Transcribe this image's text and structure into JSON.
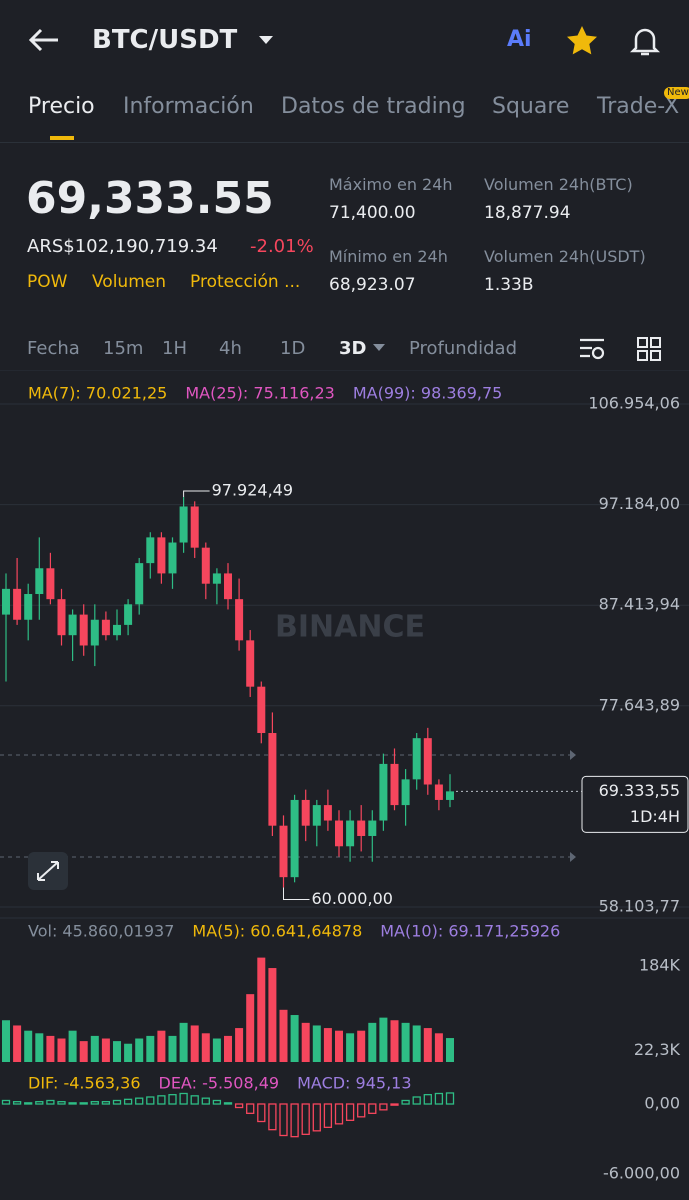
{
  "header": {
    "pair": "BTC/USDT",
    "ai": "Ai"
  },
  "tabs": [
    "Precio",
    "Información",
    "Datos de trading",
    "Square",
    "Trade-X"
  ],
  "tab_badge": "New",
  "ticker": {
    "price": "69,333.55",
    "fiat": "ARS$102,190,719.34",
    "change": "-2.01%",
    "tags": [
      "POW",
      "Volumen",
      "Protección ..."
    ],
    "stats": [
      {
        "label": "Máximo en 24h",
        "value": "71,400.00"
      },
      {
        "label": "Volumen 24h(BTC)",
        "value": "18,877.94"
      },
      {
        "label": "Mínimo en 24h",
        "value": "68,923.07"
      },
      {
        "label": "Volumen 24h(USDT)",
        "value": "1.33B"
      }
    ]
  },
  "timeframes": [
    "Fecha",
    "15m",
    "1H",
    "4h",
    "1D",
    "3D",
    "Profundidad"
  ],
  "chart_data": [
    {
      "type": "candlestick",
      "watermark": "BINANCE",
      "legend": [
        {
          "name": "MA(7): 70.021,25",
          "color": "#f0b90b"
        },
        {
          "name": "MA(25): 75.116,23",
          "color": "#e056c1"
        },
        {
          "name": "MA(99): 98.369,75",
          "color": "#9d7ee0"
        }
      ],
      "open": [
        86500,
        89000,
        86000,
        88500,
        91000,
        88000,
        84500,
        86500,
        83500,
        86000,
        84500,
        85500,
        87500,
        91500,
        94000,
        90500,
        93500,
        97000,
        93000,
        89500,
        90500,
        88000,
        84000,
        79500,
        75000,
        66000,
        61000,
        68500,
        66000,
        68000,
        66500,
        64000,
        66500,
        65000,
        66500,
        72000,
        68000,
        70500,
        74500,
        70000,
        68500
      ],
      "high": [
        90500,
        92000,
        89500,
        94000,
        92500,
        89000,
        87000,
        87500,
        87500,
        86800,
        87000,
        88000,
        92000,
        94500,
        94500,
        94000,
        97924.49,
        97500,
        93500,
        91000,
        91500,
        90000,
        85000,
        80000,
        77000,
        67000,
        69000,
        69500,
        68500,
        69500,
        67500,
        67500,
        68000,
        67500,
        73000,
        73500,
        71500,
        75000,
        75500,
        70500,
        71000
      ],
      "low": [
        80000,
        85500,
        84000,
        86000,
        87500,
        83500,
        82000,
        82500,
        81500,
        84000,
        84000,
        84500,
        86500,
        90000,
        89500,
        89000,
        92500,
        92000,
        88000,
        87500,
        87000,
        83000,
        78500,
        74000,
        65000,
        60000,
        60500,
        64500,
        64000,
        65500,
        63000,
        62500,
        63500,
        62500,
        65500,
        67500,
        66000,
        69500,
        69000,
        67500,
        67800
      ],
      "close": [
        89000,
        86000,
        88500,
        91000,
        88000,
        84500,
        86500,
        83500,
        86000,
        84500,
        85500,
        87500,
        91500,
        94000,
        90500,
        93500,
        97000,
        93000,
        89500,
        90500,
        88000,
        84000,
        79500,
        75000,
        66000,
        61000,
        68500,
        66000,
        68000,
        66500,
        64000,
        66500,
        65000,
        66500,
        72000,
        68000,
        70500,
        74500,
        70000,
        68500,
        69333.55
      ],
      "up_color": "#2ebd85",
      "down_color": "#f6465d",
      "ylim": [
        57035,
        109478
      ],
      "yticks": [
        {
          "value": 106954.06,
          "label": "106.954,06"
        },
        {
          "value": 97184,
          "label": "97.184,00"
        },
        {
          "value": 87413.94,
          "label": "87.413,94"
        },
        {
          "value": 77643.89,
          "label": "77.643,89"
        },
        {
          "value": 58103.77,
          "label": "58.103,77"
        }
      ],
      "annotations": [
        {
          "value": 97924.49,
          "label": "97.924,49"
        },
        {
          "value": 60000,
          "label": "60.000,00"
        }
      ],
      "last_price": {
        "value": 69333.55,
        "label": "69.333,55"
      },
      "countdown": "1D:4H"
    },
    {
      "type": "bar",
      "legend": [
        {
          "name": "Vol: 45.860,01937",
          "color": "#848e9c"
        },
        {
          "name": "MA(5): 60.641,64878",
          "color": "#f0b90b"
        },
        {
          "name": "MA(10): 69.171,25926",
          "color": "#9d7ee0"
        }
      ],
      "values": [
        80000,
        70000,
        60000,
        55000,
        50000,
        45000,
        60000,
        40000,
        50000,
        45000,
        40000,
        35000,
        45000,
        50000,
        60000,
        50000,
        75000,
        70000,
        55000,
        45000,
        50000,
        65000,
        130000,
        200000,
        180000,
        100000,
        90000,
        75000,
        70000,
        65000,
        60000,
        55000,
        60000,
        75000,
        85000,
        80000,
        75000,
        70000,
        65000,
        55000,
        45860.01937
      ],
      "ylim": [
        0,
        205000
      ],
      "yticks": [
        {
          "value": 184000,
          "label": "184K"
        },
        {
          "value": 22300,
          "label": "22,3K"
        }
      ]
    },
    {
      "type": "bar",
      "legend": [
        {
          "name": "DIF: -4.563,36",
          "color": "#f0b90b"
        },
        {
          "name": "DEA: -5.508,49",
          "color": "#e056c1"
        },
        {
          "name": "MACD: 945,13",
          "color": "#9d7ee0"
        }
      ],
      "values": [
        300,
        200,
        100,
        200,
        300,
        200,
        100,
        100,
        200,
        200,
        300,
        400,
        500,
        600,
        700,
        800,
        900,
        700,
        500,
        300,
        100,
        -300,
        -800,
        -1500,
        -2200,
        -2700,
        -2800,
        -2600,
        -2300,
        -2000,
        -1700,
        -1400,
        -1100,
        -800,
        -500,
        -100,
        300,
        600,
        800,
        900,
        945.13
      ],
      "ylim": [
        -7800,
        2914
      ],
      "yticks": [
        {
          "value": 0,
          "label": "0,00"
        },
        {
          "value": -6000,
          "label": "-6.000,00"
        }
      ]
    }
  ]
}
